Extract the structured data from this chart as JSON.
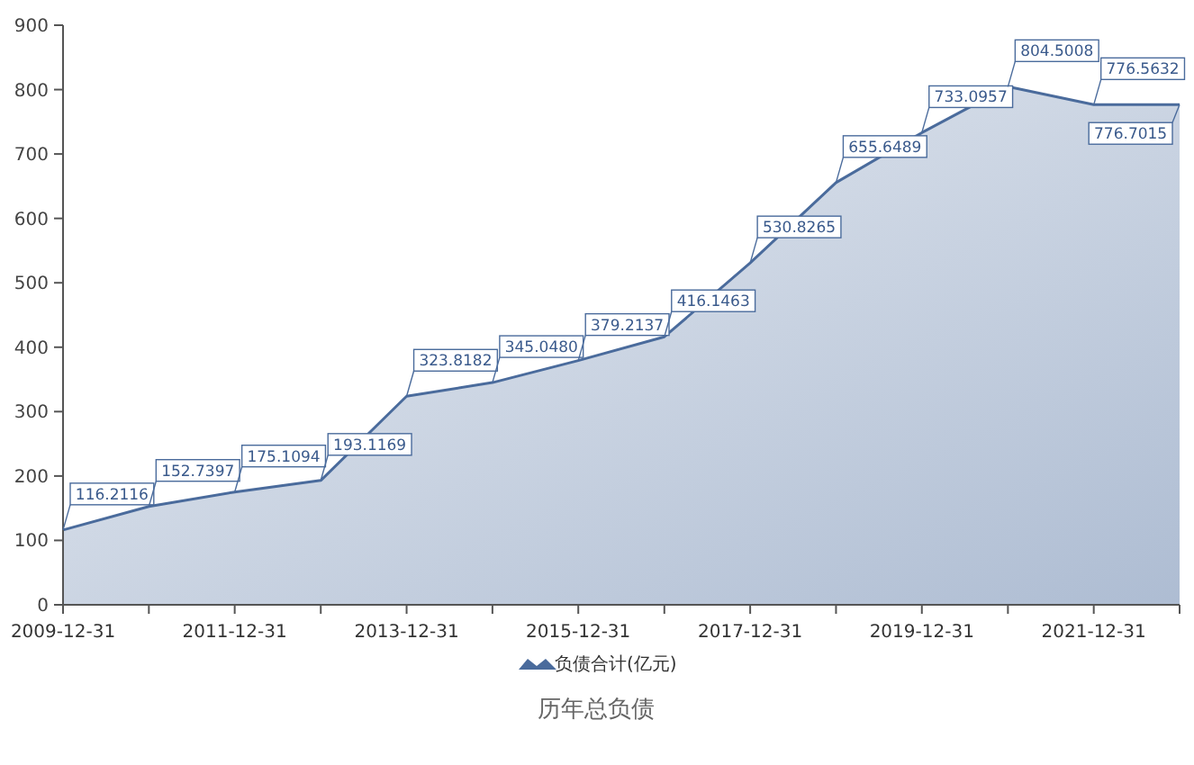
{
  "chart_data": {
    "type": "area",
    "title": "历年总负债",
    "x": [
      "2009-12-31",
      "2010-12-31",
      "2011-12-31",
      "2012-12-31",
      "2013-12-31",
      "2014-12-31",
      "2015-12-31",
      "2016-12-31",
      "2017-12-31",
      "2018-12-31",
      "2019-12-31",
      "2020-12-31",
      "2021-12-31",
      "2022-12-31"
    ],
    "series": [
      {
        "name": "负债合计(亿元)",
        "color": "#4a6b9c",
        "values": [
          116.2116,
          152.7397,
          175.1094,
          193.1169,
          323.8182,
          345.048,
          379.2137,
          416.1463,
          530.8265,
          655.6489,
          733.0957,
          804.5008,
          776.5632,
          776.7015
        ],
        "value_labels": [
          "116.2116",
          "152.7397",
          "175.1094",
          "193.1169",
          "323.8182",
          "345.0480",
          "379.2137",
          "416.1463",
          "530.8265",
          "655.6489",
          "733.0957",
          "804.5008",
          "776.5632",
          "776.7015"
        ]
      }
    ],
    "xlim": [
      "2009-12-31",
      "2022-12-31"
    ],
    "xticks": [
      {
        "value": "2009-12-31",
        "label": "2009-12-31"
      },
      {
        "value": "2010-12-31",
        "label": null
      },
      {
        "value": "2011-12-31",
        "label": "2011-12-31"
      },
      {
        "value": "2012-12-31",
        "label": null
      },
      {
        "value": "2013-12-31",
        "label": "2013-12-31"
      },
      {
        "value": "2014-12-31",
        "label": null
      },
      {
        "value": "2015-12-31",
        "label": "2015-12-31"
      },
      {
        "value": "2016-12-31",
        "label": null
      },
      {
        "value": "2017-12-31",
        "label": "2017-12-31"
      },
      {
        "value": "2018-12-31",
        "label": null
      },
      {
        "value": "2019-12-31",
        "label": "2019-12-31"
      },
      {
        "value": "2020-12-31",
        "label": null
      },
      {
        "value": "2021-12-31",
        "label": "2021-12-31"
      },
      {
        "value": "2022-12-31",
        "label": null
      }
    ],
    "ylim": [
      0,
      900
    ],
    "yticks": [
      0,
      100,
      200,
      300,
      400,
      500,
      600,
      700,
      800,
      900
    ],
    "grid": false,
    "legend": "bottom"
  }
}
